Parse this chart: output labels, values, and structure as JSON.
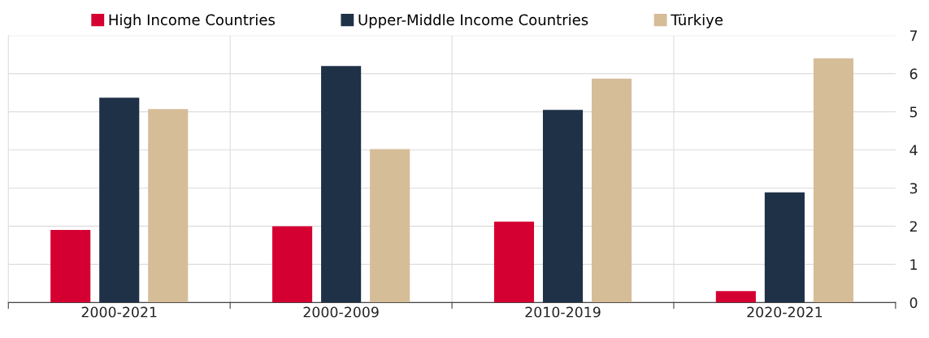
{
  "chart_data": {
    "type": "bar",
    "categories": [
      "2000-2021",
      "2000-2009",
      "2010-2019",
      "2020-2021"
    ],
    "series": [
      {
        "name": "High Income Countries",
        "color": "#d50032",
        "values": [
          1.9,
          2.0,
          2.12,
          0.3
        ]
      },
      {
        "name": "Upper-Middle Income Countries",
        "color": "#1f3147",
        "values": [
          5.37,
          6.2,
          5.05,
          2.89
        ]
      },
      {
        "name": "Türkiye",
        "color": "#d5bd98",
        "values": [
          5.07,
          4.02,
          5.87,
          6.4
        ]
      }
    ],
    "ylim": [
      0,
      7
    ],
    "yticks": [
      0,
      1,
      2,
      3,
      4,
      5,
      6,
      7
    ],
    "grid": true,
    "legend": "top"
  }
}
